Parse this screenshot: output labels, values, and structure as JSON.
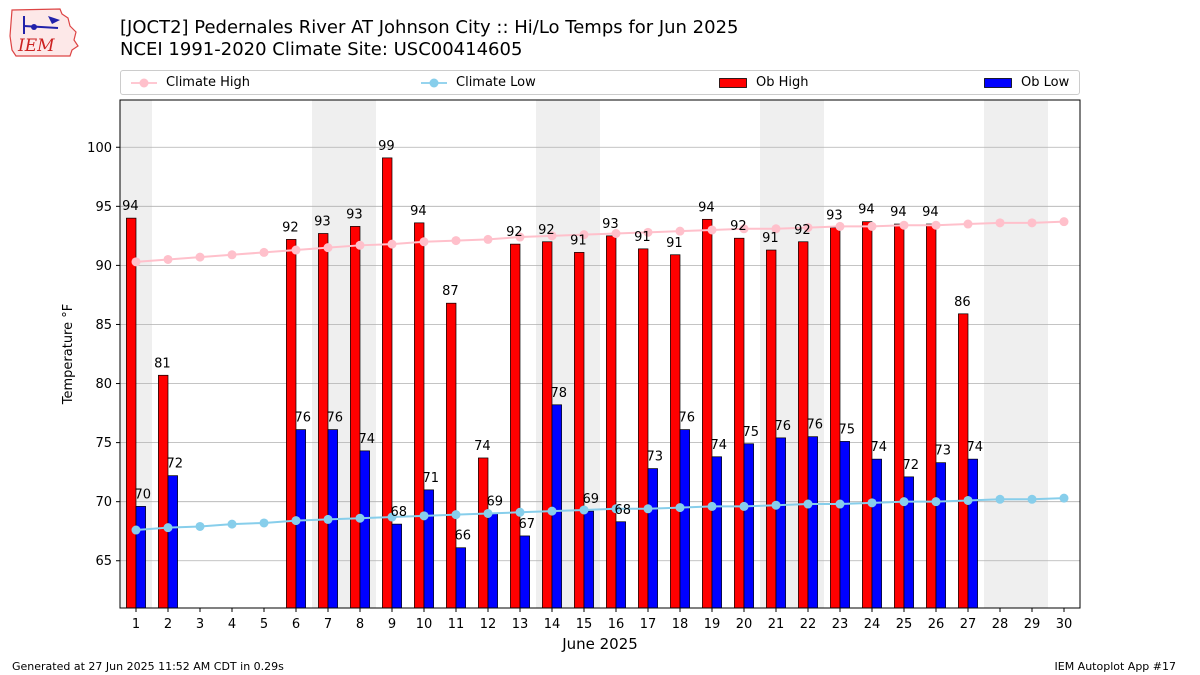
{
  "logo": {
    "text": "IEM"
  },
  "title": {
    "line1": "[JOCT2] Pedernales River  AT Johnson City :: Hi/Lo Temps for Jun 2025",
    "line2": "NCEI 1991-2020 Climate Site: USC00414605"
  },
  "legend": [
    {
      "label": "Climate High",
      "kind": "line",
      "color": "#ffc0cb"
    },
    {
      "label": "Climate Low",
      "kind": "line",
      "color": "#87ceeb"
    },
    {
      "label": "Ob High",
      "kind": "bar",
      "color": "#ff0000"
    },
    {
      "label": "Ob Low",
      "kind": "bar",
      "color": "#0000ff"
    }
  ],
  "footer": {
    "left": "Generated at 27 Jun 2025 11:52 AM CDT in 0.29s",
    "right": "IEM Autoplot App #17"
  },
  "chart_data": {
    "type": "bar",
    "xlabel": "June 2025",
    "ylabel": "Temperature °F",
    "ylim": [
      61,
      104
    ],
    "xlim": [
      0.5,
      30.5
    ],
    "yticks": [
      65,
      70,
      75,
      80,
      85,
      90,
      95,
      100
    ],
    "grid": "horizontal",
    "legend_position": "top",
    "x": [
      1,
      2,
      3,
      4,
      5,
      6,
      7,
      8,
      9,
      10,
      11,
      12,
      13,
      14,
      15,
      16,
      17,
      18,
      19,
      20,
      21,
      22,
      23,
      24,
      25,
      26,
      27,
      28,
      29,
      30
    ],
    "weekend_bands": [
      [
        0.5,
        1.5
      ],
      [
        6.5,
        8.5
      ],
      [
        13.5,
        15.5
      ],
      [
        20.5,
        22.5
      ],
      [
        27.5,
        29.5
      ]
    ],
    "series": [
      {
        "name": "Ob High",
        "kind": "bar",
        "color": "#ff0000",
        "values": [
          94,
          81,
          null,
          null,
          null,
          92,
          93,
          93,
          99,
          94,
          87,
          74,
          92,
          92,
          91,
          93,
          91,
          91,
          94,
          92,
          91,
          92,
          93,
          94,
          94,
          94,
          86,
          null,
          null,
          null
        ],
        "heights": [
          94.0,
          80.7,
          null,
          null,
          null,
          92.2,
          92.7,
          93.3,
          99.1,
          93.6,
          86.8,
          73.7,
          91.8,
          92.0,
          91.1,
          92.5,
          91.4,
          90.9,
          93.9,
          92.3,
          91.3,
          92.0,
          93.2,
          93.7,
          93.5,
          93.5,
          85.9,
          null,
          null,
          null
        ]
      },
      {
        "name": "Ob Low",
        "kind": "bar",
        "color": "#0000ff",
        "values": [
          70,
          72,
          null,
          null,
          null,
          76,
          76,
          74,
          68,
          71,
          66,
          69,
          67,
          78,
          69,
          68,
          73,
          76,
          74,
          75,
          76,
          76,
          75,
          74,
          72,
          73,
          74,
          null,
          null,
          null
        ],
        "heights": [
          69.6,
          72.2,
          null,
          null,
          null,
          76.1,
          76.1,
          74.3,
          68.1,
          71.0,
          66.1,
          69.0,
          67.1,
          78.2,
          69.2,
          68.3,
          72.8,
          76.1,
          73.8,
          74.9,
          75.4,
          75.5,
          75.1,
          73.6,
          72.1,
          73.3,
          73.6,
          null,
          null,
          null
        ]
      },
      {
        "name": "Climate High",
        "kind": "line",
        "color": "#ffc0cb",
        "values": [
          90.3,
          90.5,
          90.7,
          90.9,
          91.1,
          91.3,
          91.5,
          91.7,
          91.8,
          92.0,
          92.1,
          92.2,
          92.4,
          92.5,
          92.6,
          92.7,
          92.8,
          92.9,
          93.0,
          93.1,
          93.1,
          93.2,
          93.3,
          93.3,
          93.4,
          93.4,
          93.5,
          93.6,
          93.6,
          93.7
        ]
      },
      {
        "name": "Climate Low",
        "kind": "line",
        "color": "#87ceeb",
        "values": [
          67.6,
          67.8,
          67.9,
          68.1,
          68.2,
          68.4,
          68.5,
          68.6,
          68.7,
          68.8,
          68.9,
          69.0,
          69.1,
          69.2,
          69.3,
          69.4,
          69.4,
          69.5,
          69.6,
          69.6,
          69.7,
          69.8,
          69.8,
          69.9,
          70.0,
          70.0,
          70.1,
          70.2,
          70.2,
          70.3
        ]
      }
    ]
  }
}
